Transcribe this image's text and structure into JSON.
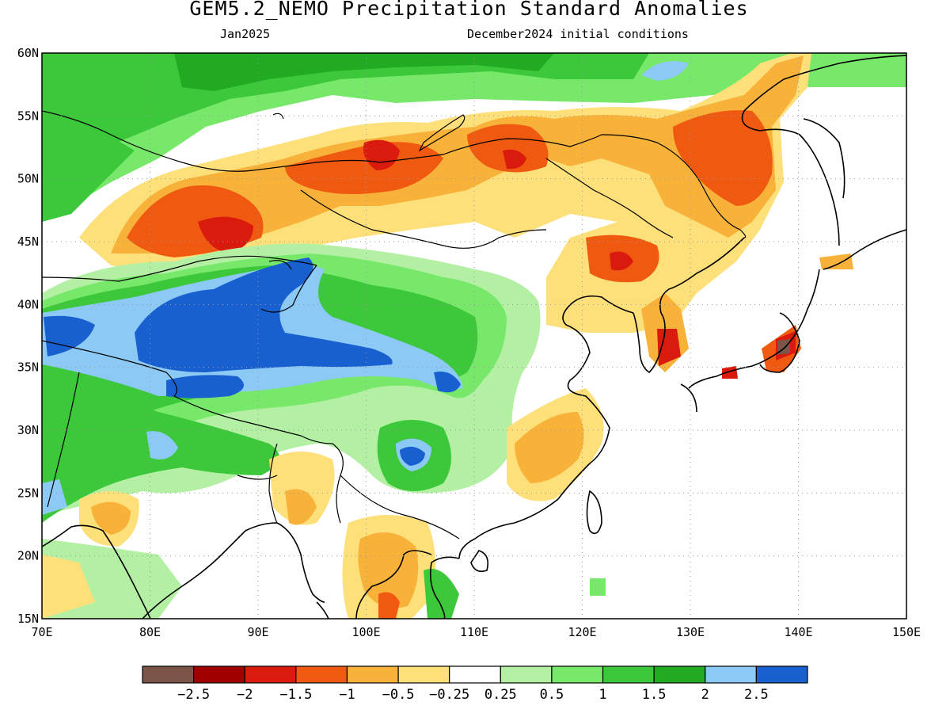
{
  "title": "GEM5.2_NEMO Precipitation Standard Anomalies",
  "subtitle_left": "Jan2025",
  "subtitle_right": "December2024 initial conditions",
  "map": {
    "lon_range": [
      70,
      150
    ],
    "lat_range": [
      15,
      60
    ],
    "lon_ticks": [
      "70E",
      "80E",
      "90E",
      "100E",
      "110E",
      "120E",
      "130E",
      "140E",
      "150E"
    ],
    "lat_ticks": [
      "15N",
      "20N",
      "25N",
      "30N",
      "35N",
      "40N",
      "45N",
      "50N",
      "55N",
      "60N"
    ]
  },
  "colorbar": {
    "colors": [
      "#7a5548",
      "#a00000",
      "#d91a0c",
      "#f05a10",
      "#f8b23a",
      "#fde07a",
      "#ffffff",
      "#b4f0a4",
      "#78e86a",
      "#3cc83a",
      "#22aa22",
      "#8ccaf5",
      "#1860d0"
    ],
    "labels": [
      "−2.5",
      "−2",
      "−1.5",
      "−1",
      "−0.5",
      "−0.25",
      "0.25",
      "0.5",
      "1",
      "1.5",
      "2",
      "2.5"
    ]
  },
  "anomaly_regions": [
    {
      "name": "west-siberia-green",
      "lon": 82,
      "lat": 57,
      "value": 1.5
    },
    {
      "name": "kazakh-dry",
      "lon": 85,
      "lat": 46,
      "value": -1.5
    },
    {
      "name": "mongolia-dry",
      "lon": 96,
      "lat": 51,
      "value": -1.5
    },
    {
      "name": "baikal-dry",
      "lon": 113,
      "lat": 52,
      "value": -1.5
    },
    {
      "name": "amur-dry",
      "lon": 131,
      "lat": 52,
      "value": -1.0
    },
    {
      "name": "north-china-dry",
      "lon": 123,
      "lat": 44,
      "value": -1.0
    },
    {
      "name": "korea-dry",
      "lon": 127,
      "lat": 36,
      "value": -2.0
    },
    {
      "name": "japan-dry",
      "lon": 138,
      "lat": 36,
      "value": -2.5
    },
    {
      "name": "tarim-wet",
      "lon": 90,
      "lat": 38,
      "value": 2.5
    },
    {
      "name": "tibet-wet",
      "lon": 95,
      "lat": 35,
      "value": 2.0
    },
    {
      "name": "sichuan-wet",
      "lon": 103,
      "lat": 27,
      "value": 2.5
    },
    {
      "name": "south-china-dry",
      "lon": 115,
      "lat": 28,
      "value": -0.5
    },
    {
      "name": "indochina-dry",
      "lon": 103,
      "lat": 18,
      "value": -1.0
    },
    {
      "name": "india-dry",
      "lon": 77,
      "lat": 22,
      "value": -0.5
    }
  ]
}
